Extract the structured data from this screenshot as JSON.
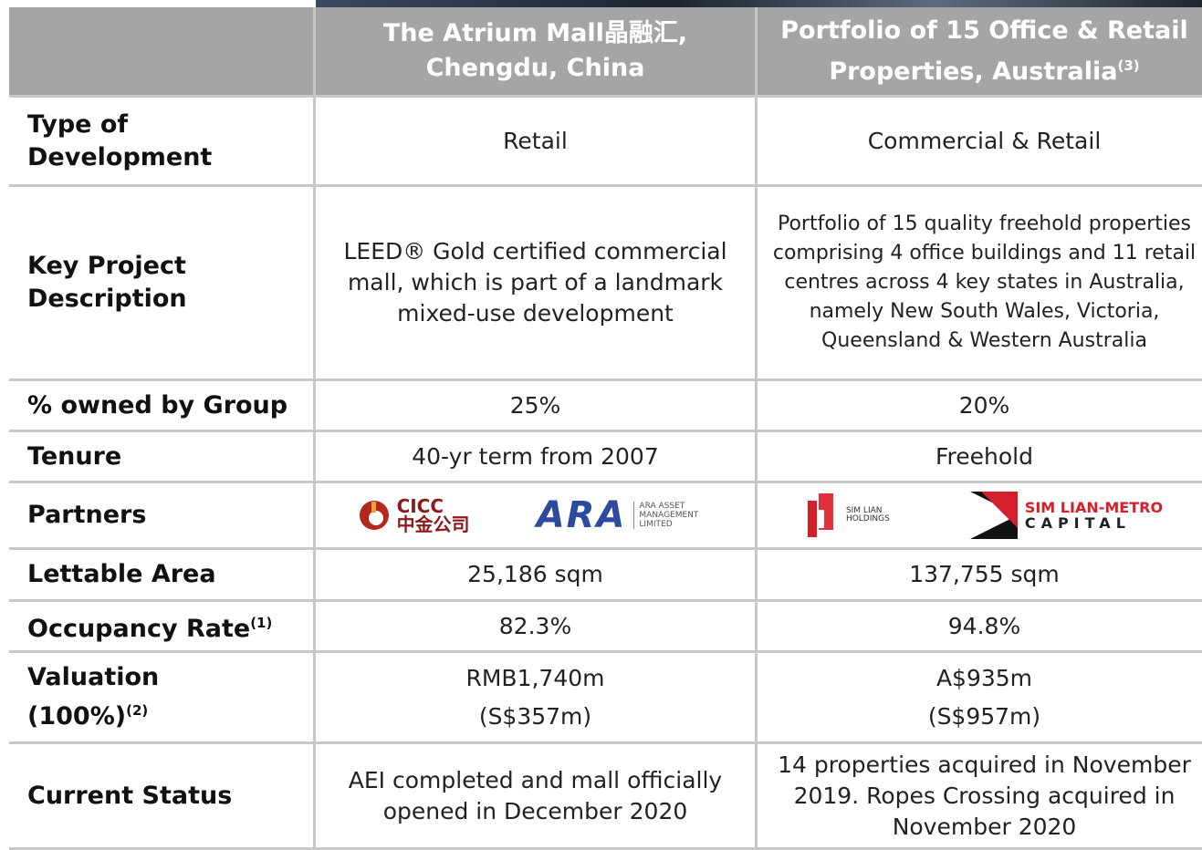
{
  "table": {
    "columns": [
      {
        "text": "The Atrium Mall晶融汇, Chengdu, China"
      },
      {
        "text": "Portfolio of 15 Office & Retail Properties, Australia",
        "note": "(3)"
      }
    ],
    "rows": [
      {
        "label": "Type of Development",
        "values": [
          "Retail",
          "Commercial & Retail"
        ]
      },
      {
        "label": "Key Project Description",
        "values": [
          "LEED® Gold certified commercial mall, which is part of a landmark mixed-use development",
          "Portfolio of 15 quality freehold properties comprising 4 office buildings and 11 retail centres across 4 key states in Australia, namely New South Wales, Victoria, Queensland & Western Australia"
        ]
      },
      {
        "label": "% owned by Group",
        "values": [
          "25%",
          "20%"
        ]
      },
      {
        "label": "Tenure",
        "values": [
          "40-yr term from 2007",
          "Freehold"
        ]
      },
      {
        "label": "Lettable Area",
        "values": [
          "25,186 sqm",
          "137,755 sqm"
        ]
      },
      {
        "label": "Occupancy Rate",
        "note": "(1)",
        "values": [
          "82.3%",
          "94.8%"
        ]
      },
      {
        "label": "Current Status",
        "values": [
          "AEI completed and mall officially opened in December 2020",
          "14 properties acquired in November 2019. Ropes Crossing acquired in November 2020"
        ]
      }
    ]
  },
  "partners": {
    "label": "Partners",
    "cicc": {
      "name": "CICC",
      "chinese": "中金公司"
    },
    "ara": {
      "name": "ARA",
      "sub": "ARA ASSET MANAGEMENT LIMITED"
    },
    "simlian": {
      "name": "SIM LIAN HOLDINGS"
    },
    "simlianmetro": {
      "line1": "SIM LIAN-METRO",
      "line2": "CAPITAL"
    }
  },
  "valuation": {
    "label": [
      "Valuation",
      "(100%)"
    ],
    "note": "(2)",
    "values": [
      [
        "RMB1,740m",
        "(S$357m)"
      ],
      [
        "A$935m",
        "(S$957m)"
      ]
    ]
  }
}
